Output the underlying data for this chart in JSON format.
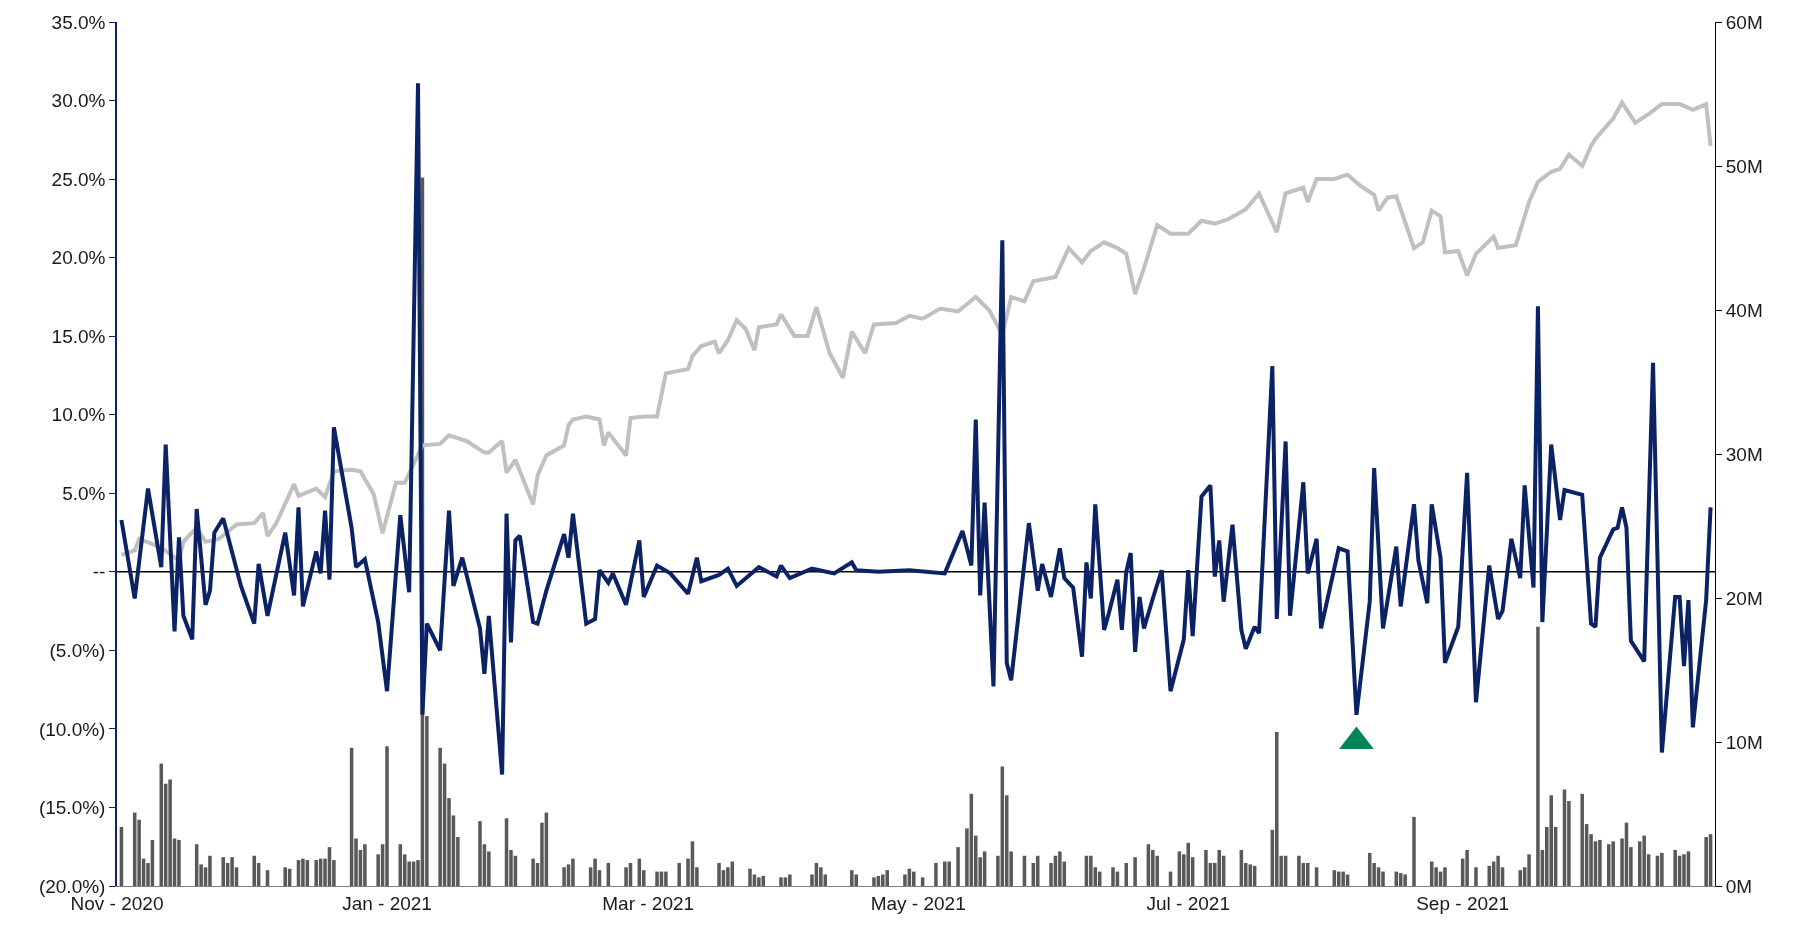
{
  "chart_data": {
    "type": "line",
    "xlim": [
      "2020-11-01",
      "2021-10-28"
    ],
    "xticks": [
      {
        "value": "2020-11-01",
        "label": "Nov - 2020"
      },
      {
        "value": "2021-01-01",
        "label": "Jan - 2021"
      },
      {
        "value": "2021-03-01",
        "label": "Mar - 2021"
      },
      {
        "value": "2021-05-01",
        "label": "May - 2021"
      },
      {
        "value": "2021-07-01",
        "label": "Jul - 2021"
      },
      {
        "value": "2021-09-01",
        "label": "Sep - 2021"
      }
    ],
    "ylim": [
      -20,
      35
    ],
    "yticks": [
      {
        "value": -20,
        "label": "(20.0%)"
      },
      {
        "value": -15,
        "label": "(15.0%)"
      },
      {
        "value": -10,
        "label": "(10.0%)"
      },
      {
        "value": -5,
        "label": "(5.0%)"
      },
      {
        "value": 0,
        "label": "--"
      },
      {
        "value": 5,
        "label": "5.0%"
      },
      {
        "value": 10,
        "label": "10.0%"
      },
      {
        "value": 15,
        "label": "15.0%"
      },
      {
        "value": 20,
        "label": "20.0%"
      },
      {
        "value": 25,
        "label": "25.0%"
      },
      {
        "value": 30,
        "label": "30.0%"
      },
      {
        "value": 35,
        "label": "35.0%"
      }
    ],
    "y2lim": [
      0,
      60
    ],
    "y2ticks": [
      {
        "value": 0,
        "label": "0M"
      },
      {
        "value": 10,
        "label": "10M"
      },
      {
        "value": 20,
        "label": "20M"
      },
      {
        "value": 30,
        "label": "30M"
      },
      {
        "value": 40,
        "label": "40M"
      },
      {
        "value": 50,
        "label": "50M"
      },
      {
        "value": 60,
        "label": "60M"
      }
    ],
    "ref_lines": [
      {
        "axis": "y",
        "value": 0,
        "color": "#000000"
      }
    ],
    "series": [
      {
        "type": "bar",
        "axis": "y2",
        "color": "#595959",
        "x": [
          "2020-11-02",
          "2020-11-05",
          "2020-11-06",
          "2020-11-07",
          "2020-11-08",
          "2020-11-09",
          "2020-11-11",
          "2020-11-12",
          "2020-11-13",
          "2020-11-14",
          "2020-11-15",
          "2020-11-19",
          "2020-11-20",
          "2020-11-21",
          "2020-11-22",
          "2020-11-25",
          "2020-11-26",
          "2020-11-27",
          "2020-11-28",
          "2020-12-02",
          "2020-12-03",
          "2020-12-05",
          "2020-12-09",
          "2020-12-10",
          "2020-12-12",
          "2020-12-13",
          "2020-12-14",
          "2020-12-16",
          "2020-12-17",
          "2020-12-18",
          "2020-12-19",
          "2020-12-20",
          "2020-12-24",
          "2020-12-25",
          "2020-12-26",
          "2020-12-27",
          "2020-12-30",
          "2020-12-31",
          "2021-01-01",
          "2021-01-04",
          "2021-01-05",
          "2021-01-06",
          "2021-01-07",
          "2021-01-08",
          "2021-01-09",
          "2021-01-10",
          "2021-01-13",
          "2021-01-14",
          "2021-01-15",
          "2021-01-16",
          "2021-01-17",
          "2021-01-22",
          "2021-01-23",
          "2021-01-24",
          "2021-01-28",
          "2021-01-29",
          "2021-01-30",
          "2021-02-03",
          "2021-02-04",
          "2021-02-05",
          "2021-02-06",
          "2021-02-10",
          "2021-02-11",
          "2021-02-12",
          "2021-02-16",
          "2021-02-17",
          "2021-02-18",
          "2021-02-20",
          "2021-02-24",
          "2021-02-25",
          "2021-02-27",
          "2021-02-28",
          "2021-03-03",
          "2021-03-04",
          "2021-03-05",
          "2021-03-08",
          "2021-03-10",
          "2021-03-11",
          "2021-03-12",
          "2021-03-17",
          "2021-03-18",
          "2021-03-19",
          "2021-03-20",
          "2021-03-24",
          "2021-03-25",
          "2021-03-26",
          "2021-03-27",
          "2021-03-31",
          "2021-04-01",
          "2021-04-02",
          "2021-04-07",
          "2021-04-08",
          "2021-04-09",
          "2021-04-10",
          "2021-04-16",
          "2021-04-17",
          "2021-04-21",
          "2021-04-22",
          "2021-04-23",
          "2021-04-24",
          "2021-04-28",
          "2021-04-29",
          "2021-04-30",
          "2021-05-02",
          "2021-05-05",
          "2021-05-07",
          "2021-05-08",
          "2021-05-10",
          "2021-05-12",
          "2021-05-13",
          "2021-05-14",
          "2021-05-15",
          "2021-05-16",
          "2021-05-19",
          "2021-05-20",
          "2021-05-21",
          "2021-05-22",
          "2021-05-25",
          "2021-05-27",
          "2021-05-28",
          "2021-05-31",
          "2021-06-01",
          "2021-06-02",
          "2021-06-03",
          "2021-06-08",
          "2021-06-09",
          "2021-06-10",
          "2021-06-11",
          "2021-06-14",
          "2021-06-15",
          "2021-06-17",
          "2021-06-19",
          "2021-06-22",
          "2021-06-23",
          "2021-06-24",
          "2021-06-27",
          "2021-06-29",
          "2021-06-30",
          "2021-07-01",
          "2021-07-02",
          "2021-07-05",
          "2021-07-06",
          "2021-07-07",
          "2021-07-08",
          "2021-07-09",
          "2021-07-13",
          "2021-07-14",
          "2021-07-15",
          "2021-07-16",
          "2021-07-20",
          "2021-07-21",
          "2021-07-22",
          "2021-07-23",
          "2021-07-26",
          "2021-07-27",
          "2021-07-28",
          "2021-07-30",
          "2021-08-03",
          "2021-08-04",
          "2021-08-05",
          "2021-08-06",
          "2021-08-11",
          "2021-08-12",
          "2021-08-13",
          "2021-08-14",
          "2021-08-17",
          "2021-08-18",
          "2021-08-19",
          "2021-08-21",
          "2021-08-25",
          "2021-08-26",
          "2021-08-27",
          "2021-08-28",
          "2021-09-01",
          "2021-09-02",
          "2021-09-04",
          "2021-09-07",
          "2021-09-08",
          "2021-09-09",
          "2021-09-10",
          "2021-09-14",
          "2021-09-15",
          "2021-09-16",
          "2021-09-18",
          "2021-09-19",
          "2021-09-20",
          "2021-09-21",
          "2021-09-22",
          "2021-09-24",
          "2021-09-25",
          "2021-09-28",
          "2021-09-29",
          "2021-09-30",
          "2021-10-01",
          "2021-10-02",
          "2021-10-04",
          "2021-10-05",
          "2021-10-07",
          "2021-10-08",
          "2021-10-09",
          "2021-10-11",
          "2021-10-12",
          "2021-10-13",
          "2021-10-15",
          "2021-10-16",
          "2021-10-19",
          "2021-10-20",
          "2021-10-21",
          "2021-10-22",
          "2021-10-26",
          "2021-10-27"
        ],
        "values": [
          4.1,
          5.1,
          4.6,
          1.9,
          1.6,
          3.2,
          8.5,
          7.1,
          7.4,
          3.3,
          3.2,
          2.9,
          1.5,
          1.3,
          2.1,
          2.0,
          1.6,
          2.0,
          1.3,
          2.1,
          1.6,
          1.1,
          1.3,
          1.2,
          1.8,
          1.9,
          1.8,
          1.8,
          1.9,
          1.9,
          2.7,
          1.8,
          9.6,
          3.3,
          2.5,
          2.9,
          2.2,
          2.9,
          9.7,
          2.9,
          2.2,
          1.7,
          1.7,
          1.8,
          49.2,
          11.8,
          9.6,
          8.5,
          6.1,
          4.9,
          3.4,
          4.5,
          2.9,
          2.4,
          4.7,
          2.5,
          2.1,
          1.9,
          1.6,
          4.4,
          5.1,
          1.3,
          1.5,
          1.9,
          1.3,
          1.9,
          1.1,
          1.6,
          1.3,
          1.6,
          1.9,
          1.1,
          1.0,
          1.0,
          1.0,
          1.6,
          1.9,
          3.1,
          1.3,
          1.6,
          1.1,
          1.3,
          1.7,
          1.2,
          0.8,
          0.6,
          0.7,
          0.6,
          0.6,
          0.8,
          0.8,
          1.6,
          1.3,
          0.8,
          1.1,
          0.8,
          0.6,
          0.7,
          0.8,
          1.1,
          0.8,
          1.2,
          1.0,
          0.6,
          1.6,
          1.7,
          1.7,
          2.7,
          4.0,
          6.4,
          3.5,
          2.0,
          2.4,
          2.1,
          8.3,
          6.3,
          2.4,
          2.1,
          1.6,
          2.1,
          1.6,
          2.1,
          2.4,
          1.7,
          2.1,
          2.1,
          1.3,
          1.0,
          1.3,
          1.0,
          1.6,
          2.0,
          2.9,
          2.5,
          2.1,
          1.0,
          2.4,
          2.2,
          3.0,
          2.0,
          2.5,
          1.6,
          1.6,
          2.5,
          2.1,
          2.5,
          1.6,
          1.5,
          1.4,
          3.9,
          10.7,
          2.1,
          2.1,
          2.1,
          1.6,
          1.6,
          1.3,
          1.1,
          1.0,
          1.0,
          0.8,
          2.3,
          1.6,
          1.3,
          1.0,
          1.0,
          0.9,
          0.8,
          4.8,
          1.7,
          1.3,
          1.0,
          1.3,
          1.9,
          2.5,
          1.3,
          1.4,
          1.7,
          2.1,
          1.3,
          1.1,
          1.3,
          2.2,
          18.0,
          2.5,
          4.1,
          6.3,
          4.1,
          6.7,
          5.9,
          6.4,
          4.3,
          3.6,
          3.1,
          3.2,
          2.9,
          3.1,
          3.3,
          4.4,
          2.7,
          3.1,
          3.5,
          2.2,
          2.1,
          2.3,
          2.5,
          2.1,
          2.2,
          2.4,
          3.4,
          3.6
        ]
      },
      {
        "type": "line",
        "axis": "y2",
        "color": "#c0c0c0",
        "x": [
          "2020-11-02",
          "2020-11-05",
          "2020-11-06",
          "2020-11-11",
          "2020-11-15",
          "2020-11-16",
          "2020-11-19",
          "2020-11-21",
          "2020-11-24",
          "2020-11-28",
          "2020-12-02",
          "2020-12-04",
          "2020-12-05",
          "2020-12-07",
          "2020-12-11",
          "2020-12-12",
          "2020-12-16",
          "2020-12-18",
          "2020-12-20",
          "2020-12-24",
          "2020-12-26",
          "2020-12-29",
          "2020-12-31",
          "2021-01-03",
          "2021-01-05",
          "2021-01-09",
          "2021-01-13",
          "2021-01-15",
          "2021-01-19",
          "2021-01-23",
          "2021-01-24",
          "2021-01-27",
          "2021-01-28",
          "2021-01-30",
          "2021-02-03",
          "2021-02-04",
          "2021-02-06",
          "2021-02-10",
          "2021-02-11",
          "2021-02-12",
          "2021-02-15",
          "2021-02-18",
          "2021-02-19",
          "2021-02-20",
          "2021-02-24",
          "2021-02-25",
          "2021-02-28",
          "2021-03-03",
          "2021-03-05",
          "2021-03-10",
          "2021-03-11",
          "2021-03-13",
          "2021-03-16",
          "2021-03-17",
          "2021-03-19",
          "2021-03-21",
          "2021-03-23",
          "2021-03-25",
          "2021-03-26",
          "2021-03-30",
          "2021-03-31",
          "2021-04-03",
          "2021-04-06",
          "2021-04-08",
          "2021-04-11",
          "2021-04-14",
          "2021-04-16",
          "2021-04-19",
          "2021-04-21",
          "2021-04-26",
          "2021-04-29",
          "2021-05-02",
          "2021-05-06",
          "2021-05-10",
          "2021-05-14",
          "2021-05-17",
          "2021-05-20",
          "2021-05-22",
          "2021-05-25",
          "2021-05-27",
          "2021-06-01",
          "2021-06-04",
          "2021-06-07",
          "2021-06-09",
          "2021-06-12",
          "2021-06-15",
          "2021-06-17",
          "2021-06-19",
          "2021-06-21",
          "2021-06-24",
          "2021-06-27",
          "2021-07-01",
          "2021-07-04",
          "2021-07-07",
          "2021-07-10",
          "2021-07-14",
          "2021-07-17",
          "2021-07-21",
          "2021-07-23",
          "2021-07-27",
          "2021-07-28",
          "2021-07-30",
          "2021-08-03",
          "2021-08-06",
          "2021-08-09",
          "2021-08-12",
          "2021-08-13",
          "2021-08-15",
          "2021-08-17",
          "2021-08-21",
          "2021-08-23",
          "2021-08-25",
          "2021-08-27",
          "2021-08-28",
          "2021-08-31",
          "2021-09-02",
          "2021-09-04",
          "2021-09-08",
          "2021-09-09",
          "2021-09-13",
          "2021-09-16",
          "2021-09-18",
          "2021-09-21",
          "2021-09-23",
          "2021-09-25",
          "2021-09-28",
          "2021-09-30",
          "2021-10-01",
          "2021-10-05",
          "2021-10-07",
          "2021-10-10",
          "2021-10-13",
          "2021-10-16",
          "2021-10-20",
          "2021-10-23",
          "2021-10-26",
          "2021-10-27"
        ],
        "values": [
          23.0,
          23.3,
          24.1,
          23.5,
          22.6,
          23.9,
          24.9,
          23.9,
          24.1,
          25.1,
          25.2,
          25.9,
          24.3,
          25.2,
          27.9,
          27.1,
          27.6,
          27.0,
          28.8,
          28.9,
          28.8,
          27.2,
          24.5,
          28.0,
          28.0,
          30.6,
          30.7,
          31.3,
          30.9,
          30.1,
          30.1,
          30.9,
          28.7,
          29.6,
          26.5,
          28.5,
          29.9,
          30.6,
          32.0,
          32.4,
          32.6,
          32.4,
          30.6,
          31.5,
          29.9,
          32.5,
          32.6,
          32.6,
          35.6,
          35.9,
          36.8,
          37.5,
          37.8,
          37.0,
          37.9,
          39.3,
          38.7,
          37.2,
          38.8,
          39.0,
          39.7,
          38.2,
          38.2,
          40.2,
          37.0,
          35.3,
          38.5,
          37.0,
          39.0,
          39.1,
          39.6,
          39.4,
          40.1,
          39.9,
          40.9,
          40.0,
          38.3,
          40.9,
          40.6,
          42.0,
          42.3,
          44.3,
          43.3,
          44.1,
          44.7,
          44.3,
          43.9,
          41.1,
          42.9,
          45.9,
          45.3,
          45.3,
          46.2,
          46.0,
          46.3,
          47.0,
          48.1,
          45.4,
          48.1,
          48.5,
          47.5,
          49.1,
          49.1,
          49.4,
          48.6,
          48.0,
          46.9,
          47.8,
          47.9,
          44.3,
          44.7,
          46.9,
          46.5,
          44.0,
          44.1,
          42.4,
          43.9,
          45.1,
          44.3,
          44.5,
          47.5,
          48.9,
          49.6,
          49.8,
          50.8,
          50.0,
          51.4,
          51.9,
          53.3,
          54.4,
          53.0,
          53.6,
          54.3,
          54.3,
          53.9,
          54.3,
          51.4
        ]
      },
      {
        "color": "#0b2265",
        "x": [
          "2020-11-02",
          "2020-11-05",
          "2020-11-08",
          "2020-11-11",
          "2020-11-12",
          "2020-11-14",
          "2020-11-15",
          "2020-11-16",
          "2020-11-18",
          "2020-11-19",
          "2020-11-21",
          "2020-11-22",
          "2020-11-23",
          "2020-11-25",
          "2020-11-29",
          "2020-12-02",
          "2020-12-03",
          "2020-12-05",
          "2020-12-09",
          "2020-12-11",
          "2020-12-12",
          "2020-12-13",
          "2020-12-16",
          "2020-12-17",
          "2020-12-18",
          "2020-12-19",
          "2020-12-20",
          "2020-12-24",
          "2020-12-25",
          "2020-12-27",
          "2020-12-30",
          "2021-01-01",
          "2021-01-04",
          "2021-01-06",
          "2021-01-08",
          "2021-01-09",
          "2021-01-10",
          "2021-01-13",
          "2021-01-15",
          "2021-01-16",
          "2021-01-18",
          "2021-01-22",
          "2021-01-23",
          "2021-01-24",
          "2021-01-27",
          "2021-01-28",
          "2021-01-29",
          "2021-01-30",
          "2021-01-31",
          "2021-02-03",
          "2021-02-04",
          "2021-02-06",
          "2021-02-10",
          "2021-02-11",
          "2021-02-12",
          "2021-02-15",
          "2021-02-17",
          "2021-02-18",
          "2021-02-20",
          "2021-02-21",
          "2021-02-24",
          "2021-02-27",
          "2021-02-28",
          "2021-03-03",
          "2021-03-06",
          "2021-03-10",
          "2021-03-12",
          "2021-03-13",
          "2021-03-17",
          "2021-03-19",
          "2021-03-21",
          "2021-03-26",
          "2021-03-30",
          "2021-03-31",
          "2021-04-02",
          "2021-04-07",
          "2021-04-12",
          "2021-04-16",
          "2021-04-17",
          "2021-04-22",
          "2021-04-29",
          "2021-05-07",
          "2021-05-11",
          "2021-05-13",
          "2021-05-14",
          "2021-05-15",
          "2021-05-16",
          "2021-05-18",
          "2021-05-20",
          "2021-05-21",
          "2021-05-22",
          "2021-05-26",
          "2021-05-28",
          "2021-05-29",
          "2021-05-31",
          "2021-06-02",
          "2021-06-03",
          "2021-06-05",
          "2021-06-07",
          "2021-06-08",
          "2021-06-09",
          "2021-06-10",
          "2021-06-12",
          "2021-06-13",
          "2021-06-15",
          "2021-06-16",
          "2021-06-17",
          "2021-06-18",
          "2021-06-19",
          "2021-06-20",
          "2021-06-21",
          "2021-06-23",
          "2021-06-25",
          "2021-06-27",
          "2021-06-30",
          "2021-07-01",
          "2021-07-02",
          "2021-07-04",
          "2021-07-06",
          "2021-07-07",
          "2021-07-08",
          "2021-07-09",
          "2021-07-11",
          "2021-07-13",
          "2021-07-14",
          "2021-07-16",
          "2021-07-17",
          "2021-07-20",
          "2021-07-21",
          "2021-07-23",
          "2021-07-24",
          "2021-07-27",
          "2021-07-28",
          "2021-07-30",
          "2021-07-31",
          "2021-08-04",
          "2021-08-06",
          "2021-08-08",
          "2021-08-11",
          "2021-08-12",
          "2021-08-14",
          "2021-08-17",
          "2021-08-18",
          "2021-08-21",
          "2021-08-22",
          "2021-08-24",
          "2021-08-25",
          "2021-08-27",
          "2021-08-28",
          "2021-08-31",
          "2021-09-02",
          "2021-09-04",
          "2021-09-07",
          "2021-09-09",
          "2021-09-10",
          "2021-09-12",
          "2021-09-14",
          "2021-09-15",
          "2021-09-17",
          "2021-09-18",
          "2021-09-19",
          "2021-09-21",
          "2021-09-23",
          "2021-09-24",
          "2021-09-28",
          "2021-09-30",
          "2021-10-01",
          "2021-10-02",
          "2021-10-05",
          "2021-10-06",
          "2021-10-07",
          "2021-10-08",
          "2021-10-09",
          "2021-10-12",
          "2021-10-14",
          "2021-10-16",
          "2021-10-19",
          "2021-10-20",
          "2021-10-21",
          "2021-10-22",
          "2021-10-23",
          "2021-10-26",
          "2021-10-27"
        ],
        "values": [
          3.3,
          -1.7,
          5.3,
          0.3,
          8.1,
          -3.8,
          2.2,
          -2.8,
          -4.3,
          4.0,
          -2.1,
          -1.2,
          2.5,
          3.4,
          -0.9,
          -3.3,
          0.5,
          -2.8,
          2.5,
          -1.5,
          4.1,
          -2.2,
          1.3,
          -0.1,
          3.9,
          -0.5,
          9.2,
          2.8,
          0.3,
          0.8,
          -3.2,
          -7.6,
          3.6,
          -1.3,
          31.1,
          -9.1,
          -3.3,
          -5.0,
          3.9,
          -0.9,
          0.9,
          -3.6,
          -6.5,
          -2.8,
          -12.9,
          3.7,
          -4.5,
          2.0,
          2.3,
          -3.2,
          -3.3,
          -1.2,
          2.4,
          0.9,
          3.7,
          -3.3,
          -3.0,
          0.1,
          -0.7,
          -0.1,
          -2.1,
          2.0,
          -1.6,
          0.4,
          -0.1,
          -1.4,
          0.9,
          -0.6,
          -0.2,
          0.2,
          -0.9,
          0.3,
          -0.3,
          0.4,
          -0.4,
          0.2,
          -0.1,
          0.6,
          0.1,
          0.0,
          0.1,
          -0.1,
          2.6,
          0.4,
          9.7,
          -1.5,
          4.4,
          -7.3,
          21.1,
          -5.8,
          -6.9,
          3.1,
          -1.2,
          0.5,
          -1.6,
          1.5,
          -0.4,
          -1.0,
          -5.4,
          0.6,
          -1.7,
          4.3,
          -3.7,
          -2.7,
          -0.5,
          -3.7,
          0.0,
          1.2,
          -5.1,
          -1.6,
          -3.6,
          -1.7,
          0.1,
          -7.6,
          -4.3,
          0.1,
          -4.1,
          4.8,
          5.5,
          -0.3,
          2.0,
          -1.9,
          3.0,
          -3.7,
          -4.9,
          -3.5,
          -3.9,
          13.1,
          -3.0,
          8.3,
          -2.8,
          5.7,
          -0.1,
          2.1,
          -3.6,
          1.5,
          1.3,
          -9.1,
          -1.9,
          6.6,
          -3.6,
          1.6,
          -2.2,
          4.3,
          0.7,
          -2.0,
          4.3,
          0.9,
          -5.8,
          -3.5,
          6.3,
          -8.3,
          0.4,
          -3.0,
          -2.5,
          2.1,
          -0.4,
          5.5,
          -1.0,
          16.9,
          -3.2,
          8.1,
          3.3,
          5.2,
          4.9,
          -3.3,
          -3.5,
          0.9,
          2.7,
          2.8,
          4.1,
          2.8,
          -4.4,
          -5.7,
          13.3,
          -11.5,
          -1.6,
          -1.6,
          -6.0,
          -1.8,
          -9.9,
          -1.8,
          4.1
        ]
      },
      {
        "type": "scatter",
        "marker": "triangle",
        "color": "#008556",
        "x": [
          "2021-08-08"
        ],
        "values": [
          -10.8
        ]
      }
    ]
  }
}
